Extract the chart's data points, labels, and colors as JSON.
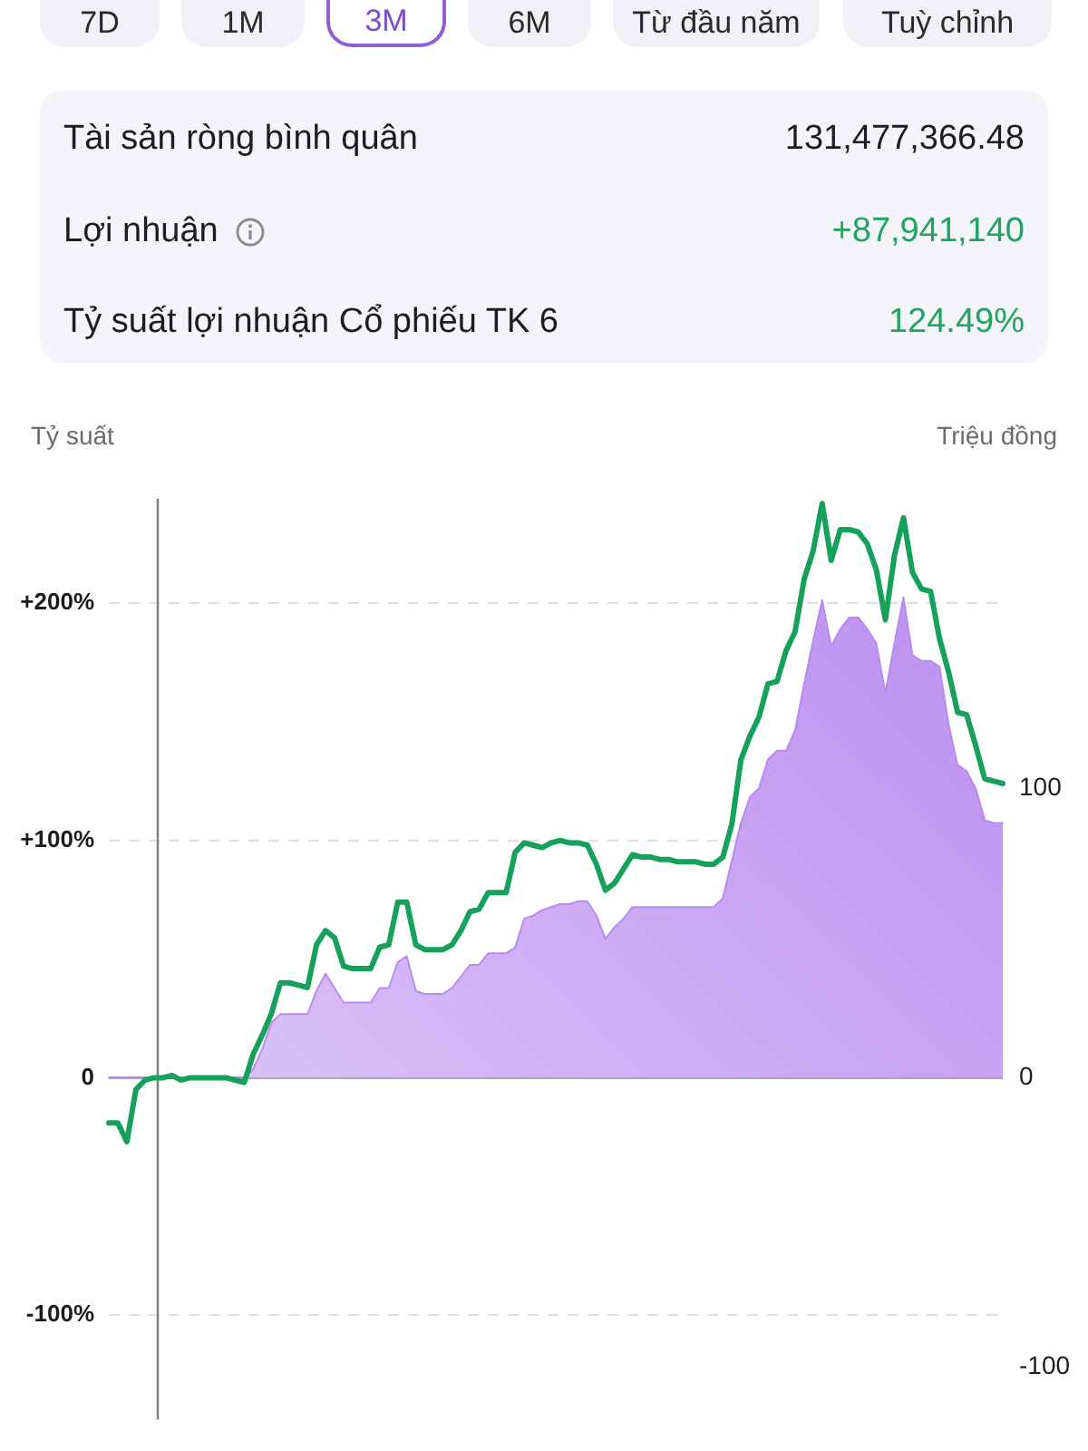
{
  "chart_data": [
    {
      "type": "other",
      "annotations": [
        "7D",
        "1M",
        "3M",
        "6M",
        "Từ đầu năm",
        "Tuỳ chỉnh"
      ]
    },
    {
      "type": "other",
      "annotations": [
        "Tài sản ròng bình quân",
        "131,477,366.48",
        "Lợi nhuận",
        "+87,941,140",
        "Tỷ suất lợi nhuận Cổ phiếu TK 6",
        "124.49%"
      ]
    },
    {
      "type": "line",
      "ylabel": "Tỷ suất",
      "y2label": "Triệu đồng",
      "categories": [
        null,
        null,
        null,
        null,
        null,
        null,
        null,
        null,
        null,
        null,
        null,
        null,
        null,
        null,
        null,
        null,
        null,
        null,
        null,
        null,
        null,
        null,
        null,
        null,
        null,
        null,
        null,
        null,
        null,
        null,
        null,
        null,
        null,
        null,
        null,
        null,
        null,
        null,
        null,
        null,
        null,
        null,
        null,
        null,
        null,
        null,
        null,
        null,
        null,
        null,
        null,
        null,
        null,
        null,
        null,
        null,
        null,
        null,
        null,
        null,
        null,
        null,
        null,
        null,
        null,
        null,
        null,
        null,
        null,
        null,
        null,
        null,
        null,
        null,
        null,
        null,
        null,
        null,
        null,
        null,
        null,
        null,
        null,
        null,
        null,
        null,
        null,
        null,
        null,
        null,
        null,
        null,
        null,
        null,
        null,
        null,
        null,
        null,
        null,
        null
      ],
      "series": [
        {
          "type": "area",
          "axis": "y2",
          "color": "#b98bef",
          "values": [
            0,
            0,
            0,
            0,
            0,
            0,
            0,
            0,
            0,
            0,
            0,
            0,
            0,
            0,
            0,
            0,
            3,
            10,
            19,
            22,
            22,
            22,
            22,
            30,
            36,
            31,
            26,
            26,
            26,
            26,
            31,
            31,
            40,
            42,
            30,
            29,
            29,
            29,
            31,
            35,
            39,
            39,
            43,
            43,
            43,
            45,
            55,
            56,
            58,
            59,
            60,
            60,
            61,
            61,
            56,
            48,
            52,
            55,
            59,
            59,
            59,
            59,
            59,
            59,
            59,
            59,
            59,
            59,
            62,
            75,
            88,
            97,
            100,
            110,
            113,
            113,
            120,
            136,
            151,
            165,
            149,
            155,
            159,
            159,
            155,
            150,
            133,
            150,
            166,
            146,
            144,
            144,
            142,
            122,
            108,
            106,
            100,
            89,
            88,
            88
          ]
        },
        {
          "type": "line",
          "color": "#15a05c",
          "values": [
            -19,
            -19,
            -27,
            -5,
            -1,
            0,
            0,
            1,
            -1,
            0,
            0,
            0,
            0,
            0,
            -1,
            -2,
            10,
            18,
            27,
            40,
            40,
            39,
            38,
            56,
            62,
            59,
            47,
            46,
            46,
            46,
            55,
            56,
            74,
            74,
            56,
            54,
            54,
            54,
            56,
            62,
            70,
            71,
            78,
            78,
            78,
            95,
            99,
            98,
            97,
            99,
            100,
            99,
            99,
            98,
            90,
            79,
            82,
            88,
            94,
            93,
            93,
            92,
            92,
            91,
            91,
            91,
            90,
            90,
            93,
            107,
            134,
            144,
            152,
            166,
            167,
            180,
            188,
            210,
            222,
            242,
            218,
            231,
            231,
            230,
            225,
            214,
            193,
            220,
            236,
            213,
            206,
            205,
            185,
            171,
            154,
            153,
            140,
            126,
            125,
            124
          ]
        }
      ],
      "ylim": [
        -144,
        244
      ],
      "yticks": [
        {
          "value": -100,
          "label": "-100%"
        },
        0,
        {
          "value": 100,
          "label": "+100%"
        },
        {
          "value": 200,
          "label": "+200%"
        }
      ],
      "y2lim": [
        -118,
        200
      ],
      "y2ticks": [
        -100,
        0,
        100
      ],
      "grid": "y",
      "marker": "none"
    }
  ]
}
